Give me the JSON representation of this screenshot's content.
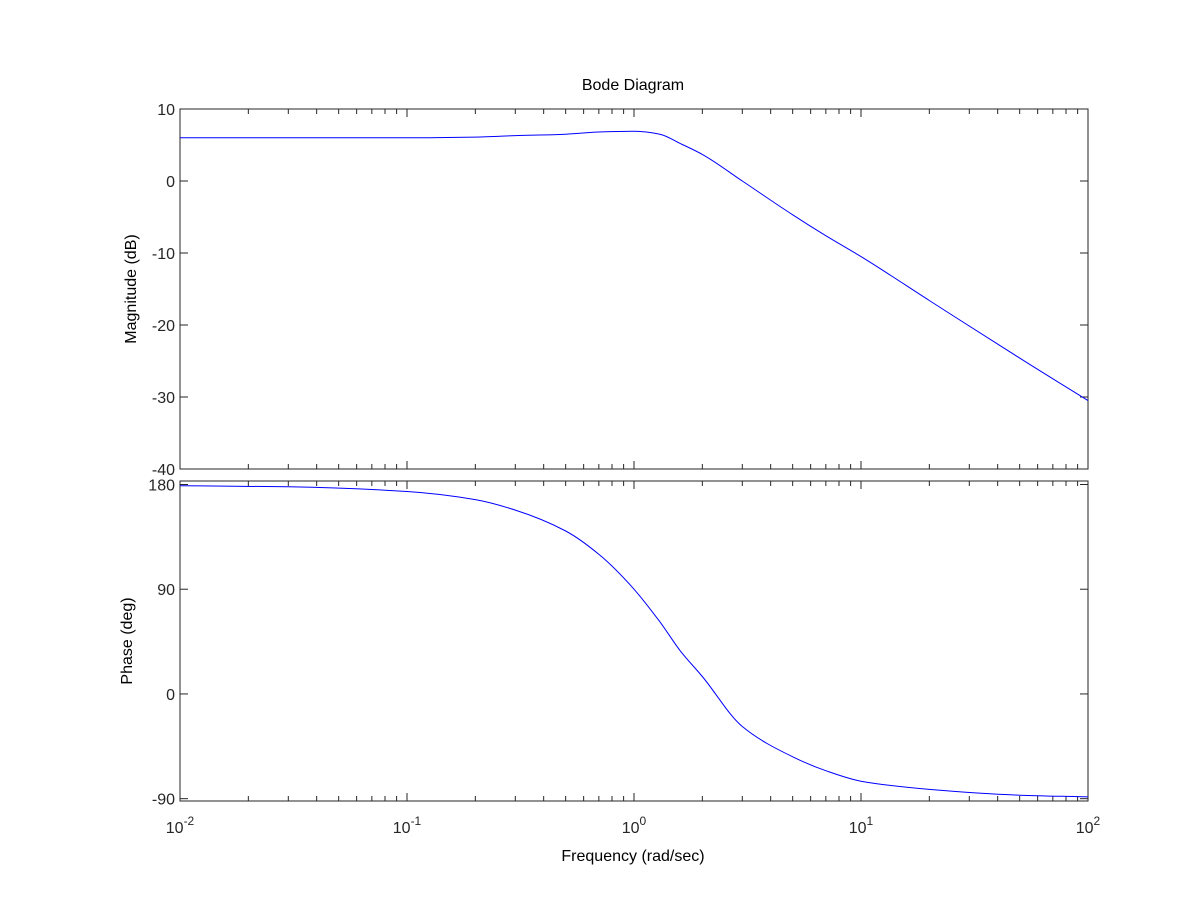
{
  "chart_data": {
    "type": "line",
    "title": "Bode Diagram",
    "xlabel": "Frequency  (rad/sec)",
    "x_scale": "log",
    "xlim": [
      0.01,
      100
    ],
    "x_ticks": [
      {
        "base": "10",
        "exp": "-2"
      },
      {
        "base": "10",
        "exp": "-1"
      },
      {
        "base": "10",
        "exp": "0"
      },
      {
        "base": "10",
        "exp": "1"
      },
      {
        "base": "10",
        "exp": "2"
      }
    ],
    "x_tick_values": [
      0.01,
      0.1,
      1,
      10,
      100
    ],
    "grid": false,
    "line_color": "#0000ff",
    "subplots": [
      {
        "id": "magnitude",
        "ylabel": "Magnitude (dB)",
        "ylim": [
          -40,
          10
        ],
        "y_ticks": [
          10,
          0,
          -10,
          -20,
          -30,
          -40
        ],
        "series": [
          {
            "x": [
              0.01,
              0.03,
              0.1,
              0.2,
              0.3,
              0.5,
              0.7,
              1.0,
              1.3,
              1.6,
              2.0,
              3.0,
              5.0,
              7.0,
              10,
              20,
              50,
              100
            ],
            "values": [
              6.0,
              6.0,
              6.0,
              6.1,
              6.3,
              6.5,
              6.8,
              6.9,
              6.5,
              5.2,
              3.7,
              0.0,
              -4.7,
              -7.6,
              -10.5,
              -16.6,
              -24.6,
              -30.5
            ]
          }
        ]
      },
      {
        "id": "phase",
        "ylabel": "Phase (deg)",
        "ylim": [
          -92,
          183
        ],
        "y_ticks": [
          180,
          90,
          0,
          -90
        ],
        "series": [
          {
            "x": [
              0.01,
              0.03,
              0.1,
              0.2,
              0.3,
              0.5,
              0.7,
              1.0,
              1.3,
              1.6,
              2.0,
              3.0,
              5.0,
              7.0,
              10,
              20,
              50,
              100
            ],
            "values": [
              179,
              178,
              174,
              167,
              158,
              140,
              120,
              90,
              62,
              37,
              15,
              -28,
              -54,
              -66,
              -75,
              -82,
              -87,
              -88.5
            ]
          }
        ]
      }
    ]
  }
}
